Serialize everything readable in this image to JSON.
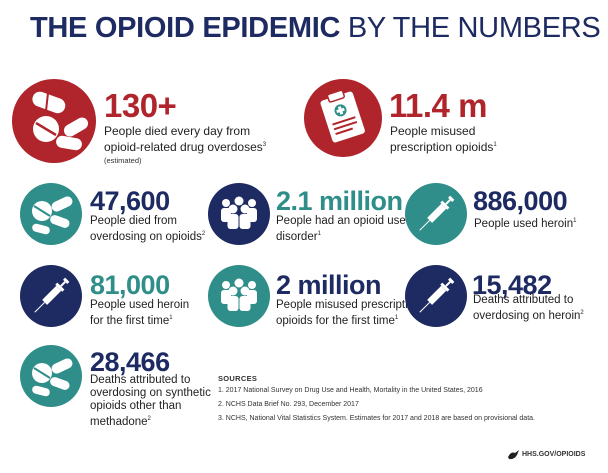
{
  "title_bold": "THE OPIOID EPIDEMIC",
  "title_light": "BY THE NUMBERS",
  "stats": {
    "deaths_daily": {
      "number": "130+",
      "line1": "People died every day from",
      "line2": "opioid-related drug overdoses",
      "ref": "3",
      "note": "(estimated)"
    },
    "misused_rx": {
      "number": "11.4 m",
      "line1": "People misused",
      "line2": "prescription opioids",
      "ref": "1"
    },
    "overdose_deaths": {
      "number": "47,600",
      "line1": "People died from",
      "line2": "overdosing on opioids",
      "ref": "2"
    },
    "use_disorder": {
      "number": "2.1 million",
      "line1": "People had an opioid use",
      "line2": "disorder",
      "ref": "1"
    },
    "heroin_users": {
      "number": "886,000",
      "line1": "People used heroin",
      "ref": "1"
    },
    "heroin_first": {
      "number": "81,000",
      "line1": "People used heroin",
      "line2": "for the first time",
      "ref": "1"
    },
    "misused_first": {
      "number": "2 million",
      "line1": "People misused prescription",
      "line2": "opioids for the first time",
      "ref": "1"
    },
    "heroin_deaths": {
      "number": "15,482",
      "line1": "Deaths attributed to",
      "line2": "overdosing on heroin",
      "ref": "2"
    },
    "synthetic_deaths": {
      "number": "28,466",
      "line1": "Deaths attributed to",
      "line2": "overdosing on synthetic",
      "line3": "opioids other than",
      "line4": "methadone",
      "ref": "2"
    }
  },
  "sources": {
    "heading": "SOURCES",
    "items": [
      "1.  2017 National Survey on Drug Use and Health, Mortality in the United States, 2016",
      "2.  NCHS Data Brief No. 293, December 2017",
      "3.  NCHS, National Vital Statistics System. Estimates for 2017 and 2018 are based on provisional data."
    ]
  },
  "brand": "HHS.GOV/OPIOIDS",
  "colors": {
    "red": "#b0252b",
    "teal": "#2f8e89",
    "navy": "#1e2b62"
  },
  "icons": [
    "pills-icon",
    "clipboard-icon",
    "pills-icon",
    "people-icon",
    "syringe-icon",
    "syringe-icon",
    "people-icon",
    "syringe-icon",
    "pills-icon",
    "hhs-eagle-icon"
  ]
}
